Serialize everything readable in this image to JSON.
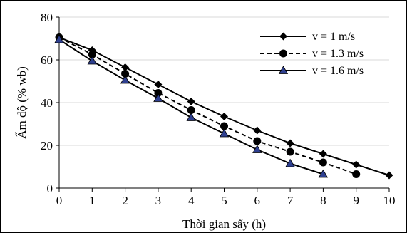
{
  "chart_data": {
    "type": "line",
    "xlabel": "Thời gian sấy (h)",
    "ylabel": "Ẩm độ (% wb)",
    "xlim": [
      0,
      10
    ],
    "ylim": [
      0,
      80
    ],
    "xticks": [
      0,
      1,
      2,
      3,
      4,
      5,
      6,
      7,
      8,
      9,
      10
    ],
    "yticks": [
      0,
      20,
      40,
      60,
      80
    ],
    "grid": "horizontal",
    "legend_position": "top-right",
    "series": [
      {
        "name": "v = 1 m/s",
        "marker": "diamond",
        "line": "solid",
        "color": "#000000",
        "x": [
          0,
          1,
          2,
          3,
          4,
          5,
          6,
          7,
          8,
          9,
          10
        ],
        "y": [
          70.5,
          64.5,
          56.5,
          48.5,
          40.5,
          33.5,
          27,
          21,
          16,
          11,
          6
        ]
      },
      {
        "name": "v = 1.3 m/s",
        "marker": "circle",
        "line": "dashed",
        "color": "#000000",
        "x": [
          0,
          1,
          2,
          3,
          4,
          5,
          6,
          7,
          8,
          9
        ],
        "y": [
          70.5,
          62.5,
          53.5,
          44.5,
          36.5,
          29,
          22,
          17,
          12,
          6.5
        ]
      },
      {
        "name": "v = 1.6 m/s",
        "marker": "triangle",
        "line": "solid",
        "color": "#000000",
        "fill": "#2e3f8f",
        "x": [
          0,
          1,
          2,
          3,
          4,
          5,
          6,
          7,
          8
        ],
        "y": [
          69.5,
          59.5,
          50.5,
          42,
          33,
          25.5,
          18,
          11.5,
          6.5
        ]
      }
    ]
  }
}
